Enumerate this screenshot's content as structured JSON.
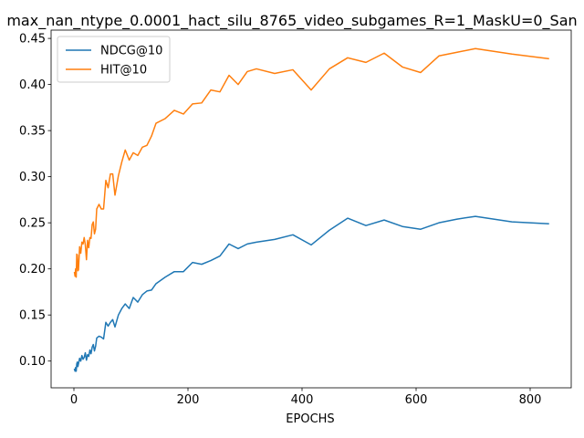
{
  "chart_data": {
    "type": "line",
    "title": "max_nan_ntype_0.0001_hact_silu_8765_video_subgames_R=1_MaskU=0_San",
    "xlabel": "EPOCHS",
    "ylabel": "",
    "xlim": [
      -40,
      872
    ],
    "ylim": [
      0.071,
      0.459
    ],
    "x_ticks": [
      0,
      200,
      400,
      600,
      800
    ],
    "y_ticks": [
      0.1,
      0.15,
      0.2,
      0.25,
      0.3,
      0.35,
      0.4,
      0.45
    ],
    "x_tick_labels": [
      "0",
      "200",
      "400",
      "600",
      "800"
    ],
    "y_tick_labels": [
      "0.10",
      "0.15",
      "0.20",
      "0.25",
      "0.30",
      "0.35",
      "0.40",
      "0.45"
    ],
    "grid": false,
    "legend_position": "upper-left",
    "series": [
      {
        "name": "NDCG@10",
        "color": "#1f77b4",
        "points": [
          [
            1,
            0.091
          ],
          [
            2,
            0.089
          ],
          [
            3,
            0.093
          ],
          [
            4,
            0.089
          ],
          [
            5,
            0.097
          ],
          [
            6,
            0.099
          ],
          [
            7,
            0.094
          ],
          [
            8,
            0.097
          ],
          [
            10,
            0.103
          ],
          [
            12,
            0.1
          ],
          [
            14,
            0.106
          ],
          [
            16,
            0.102
          ],
          [
            18,
            0.104
          ],
          [
            20,
            0.109
          ],
          [
            22,
            0.101
          ],
          [
            24,
            0.107
          ],
          [
            26,
            0.105
          ],
          [
            28,
            0.112
          ],
          [
            30,
            0.108
          ],
          [
            32,
            0.115
          ],
          [
            34,
            0.118
          ],
          [
            36,
            0.111
          ],
          [
            38,
            0.116
          ],
          [
            40,
            0.125
          ],
          [
            44,
            0.127
          ],
          [
            48,
            0.126
          ],
          [
            52,
            0.124
          ],
          [
            56,
            0.142
          ],
          [
            60,
            0.138
          ],
          [
            64,
            0.142
          ],
          [
            68,
            0.145
          ],
          [
            72,
            0.137
          ],
          [
            78,
            0.15
          ],
          [
            84,
            0.157
          ],
          [
            90,
            0.162
          ],
          [
            97,
            0.157
          ],
          [
            104,
            0.169
          ],
          [
            112,
            0.164
          ],
          [
            120,
            0.172
          ],
          [
            128,
            0.176
          ],
          [
            136,
            0.177
          ],
          [
            144,
            0.184
          ],
          [
            160,
            0.191
          ],
          [
            176,
            0.197
          ],
          [
            192,
            0.197
          ],
          [
            208,
            0.207
          ],
          [
            224,
            0.205
          ],
          [
            240,
            0.209
          ],
          [
            256,
            0.214
          ],
          [
            272,
            0.227
          ],
          [
            288,
            0.222
          ],
          [
            304,
            0.227
          ],
          [
            320,
            0.229
          ],
          [
            352,
            0.232
          ],
          [
            384,
            0.237
          ],
          [
            416,
            0.226
          ],
          [
            448,
            0.242
          ],
          [
            480,
            0.255
          ],
          [
            512,
            0.247
          ],
          [
            544,
            0.253
          ],
          [
            576,
            0.246
          ],
          [
            608,
            0.243
          ],
          [
            640,
            0.25
          ],
          [
            672,
            0.254
          ],
          [
            704,
            0.257
          ],
          [
            768,
            0.251
          ],
          [
            832,
            0.249
          ]
        ]
      },
      {
        "name": "HIT@10",
        "color": "#ff7f0e",
        "points": [
          [
            1,
            0.196
          ],
          [
            2,
            0.192
          ],
          [
            3,
            0.2
          ],
          [
            4,
            0.191
          ],
          [
            5,
            0.216
          ],
          [
            6,
            0.215
          ],
          [
            7,
            0.198
          ],
          [
            8,
            0.199
          ],
          [
            10,
            0.224
          ],
          [
            12,
            0.217
          ],
          [
            14,
            0.229
          ],
          [
            16,
            0.227
          ],
          [
            18,
            0.234
          ],
          [
            20,
            0.226
          ],
          [
            22,
            0.21
          ],
          [
            24,
            0.231
          ],
          [
            26,
            0.223
          ],
          [
            28,
            0.234
          ],
          [
            30,
            0.233
          ],
          [
            32,
            0.248
          ],
          [
            34,
            0.251
          ],
          [
            36,
            0.238
          ],
          [
            38,
            0.243
          ],
          [
            40,
            0.265
          ],
          [
            44,
            0.27
          ],
          [
            48,
            0.265
          ],
          [
            52,
            0.265
          ],
          [
            56,
            0.296
          ],
          [
            60,
            0.288
          ],
          [
            64,
            0.303
          ],
          [
            68,
            0.303
          ],
          [
            72,
            0.28
          ],
          [
            78,
            0.301
          ],
          [
            84,
            0.316
          ],
          [
            90,
            0.329
          ],
          [
            97,
            0.318
          ],
          [
            104,
            0.326
          ],
          [
            112,
            0.323
          ],
          [
            120,
            0.332
          ],
          [
            128,
            0.334
          ],
          [
            136,
            0.344
          ],
          [
            144,
            0.358
          ],
          [
            160,
            0.363
          ],
          [
            176,
            0.372
          ],
          [
            192,
            0.368
          ],
          [
            208,
            0.379
          ],
          [
            224,
            0.38
          ],
          [
            240,
            0.394
          ],
          [
            256,
            0.392
          ],
          [
            272,
            0.41
          ],
          [
            288,
            0.4
          ],
          [
            304,
            0.414
          ],
          [
            320,
            0.417
          ],
          [
            352,
            0.412
          ],
          [
            384,
            0.416
          ],
          [
            416,
            0.394
          ],
          [
            448,
            0.417
          ],
          [
            480,
            0.429
          ],
          [
            512,
            0.424
          ],
          [
            544,
            0.434
          ],
          [
            576,
            0.419
          ],
          [
            608,
            0.413
          ],
          [
            640,
            0.431
          ],
          [
            672,
            0.435
          ],
          [
            704,
            0.439
          ],
          [
            768,
            0.433
          ],
          [
            832,
            0.428
          ]
        ]
      }
    ]
  }
}
